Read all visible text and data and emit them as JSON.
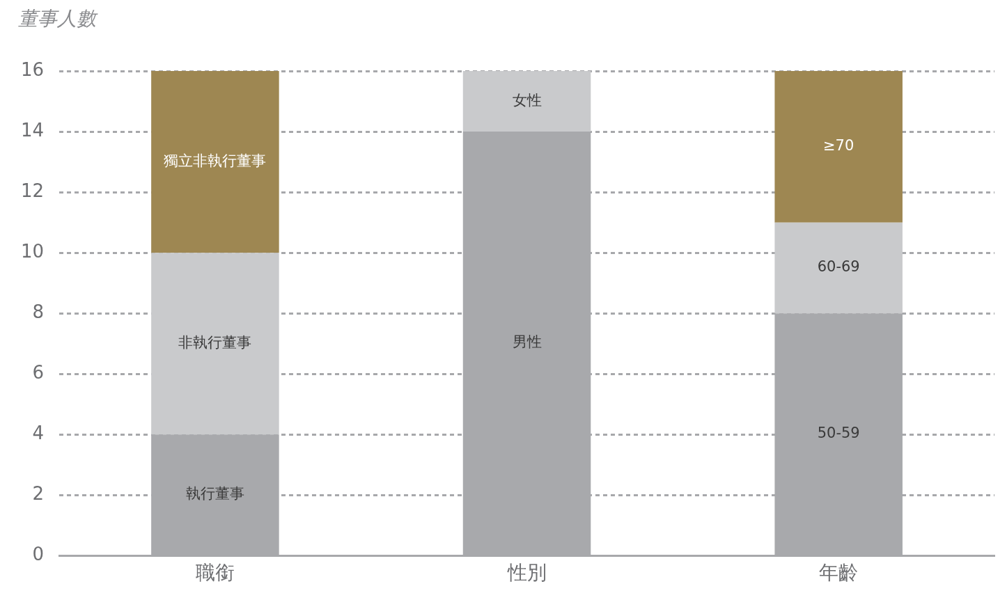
{
  "chart_data": {
    "type": "bar",
    "ylabel": "董事人數",
    "categories": [
      "職銜",
      "性別",
      "年齡"
    ],
    "stacked": true,
    "series": [
      {
        "color": "#a8a9ac",
        "values": [
          4,
          14,
          8
        ],
        "value_labels": [
          "執行董事",
          "男性",
          "50-59"
        ]
      },
      {
        "color": "#c9cacc",
        "values": [
          6,
          2,
          3
        ],
        "value_labels": [
          "非執行董事",
          "女性",
          "60-69"
        ]
      },
      {
        "color": "#9e8752",
        "values": [
          6,
          null,
          5
        ],
        "value_labels": [
          "獨立非執行董事",
          null,
          "≥70"
        ]
      }
    ],
    "ylim": [
      0,
      16
    ],
    "yticks": [
      0,
      2,
      4,
      6,
      8,
      10,
      12,
      14,
      16
    ],
    "grid": "y",
    "legend": false
  }
}
